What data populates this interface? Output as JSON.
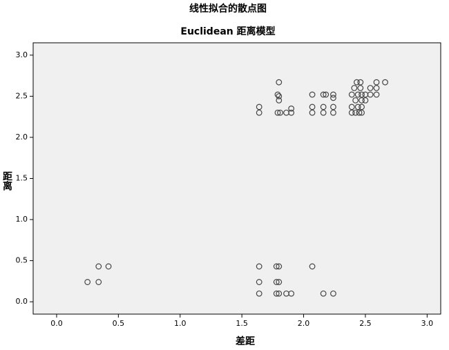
{
  "chart_data": {
    "type": "scatter",
    "title": "线性拟合的散点图",
    "subtitle": "Euclidean 距离模型",
    "x_label": "差距",
    "y_label": "距离",
    "xlim": [
      -0.19,
      3.11
    ],
    "ylim": [
      -0.15,
      3.15
    ],
    "xticks": [
      {
        "value": 0,
        "label": "0.0"
      },
      {
        "value": 0.5,
        "label": "0.5"
      },
      {
        "value": 1,
        "label": "1.0"
      },
      {
        "value": 1.5,
        "label": "1.5"
      },
      {
        "value": 2,
        "label": "2.0"
      },
      {
        "value": 2.5,
        "label": "2.5"
      },
      {
        "value": 3,
        "label": "3.0"
      }
    ],
    "yticks": [
      {
        "value": 0,
        "label": "0.0"
      },
      {
        "value": 0.5,
        "label": "0.5"
      },
      {
        "value": 1,
        "label": "1.0"
      },
      {
        "value": 1.5,
        "label": "1.5"
      },
      {
        "value": 2,
        "label": "2.0"
      },
      {
        "value": 2.5,
        "label": "2.5"
      },
      {
        "value": 3,
        "label": "3.0"
      }
    ],
    "color": "#444444",
    "background": "#f0f0f0",
    "x": [
      0.25,
      0.34,
      0.42,
      0.34,
      1.64,
      1.64,
      1.64,
      1.78,
      1.8,
      1.78,
      1.8,
      1.78,
      1.8,
      1.86,
      1.9,
      2.07,
      2.16,
      2.24,
      1.64,
      1.64,
      1.8,
      1.79,
      1.8,
      1.8,
      1.79,
      1.81,
      1.86,
      1.9,
      1.9,
      2.07,
      2.07,
      2.07,
      2.16,
      2.18,
      2.16,
      2.16,
      2.24,
      2.24,
      2.24,
      2.24,
      2.39,
      2.39,
      2.39,
      2.41,
      2.42,
      2.42,
      2.43,
      2.44,
      2.44,
      2.45,
      2.46,
      2.46,
      2.47,
      2.47,
      2.47,
      2.47,
      2.5,
      2.5,
      2.54,
      2.54,
      2.59,
      2.59,
      2.59,
      2.66
    ],
    "y": [
      0.24,
      0.43,
      0.43,
      0.24,
      0.43,
      0.24,
      0.1,
      0.43,
      0.43,
      0.24,
      0.24,
      0.1,
      0.1,
      0.1,
      0.1,
      0.43,
      0.1,
      0.1,
      2.37,
      2.3,
      2.67,
      2.52,
      2.5,
      2.45,
      2.3,
      2.3,
      2.3,
      2.35,
      2.3,
      2.52,
      2.37,
      2.3,
      2.52,
      2.52,
      2.37,
      2.3,
      2.52,
      2.48,
      2.37,
      2.3,
      2.52,
      2.37,
      2.3,
      2.6,
      2.45,
      2.3,
      2.67,
      2.52,
      2.37,
      2.3,
      2.6,
      2.67,
      2.45,
      2.52,
      2.37,
      2.3,
      2.45,
      2.52,
      2.6,
      2.52,
      2.67,
      2.6,
      2.52,
      2.67
    ]
  }
}
